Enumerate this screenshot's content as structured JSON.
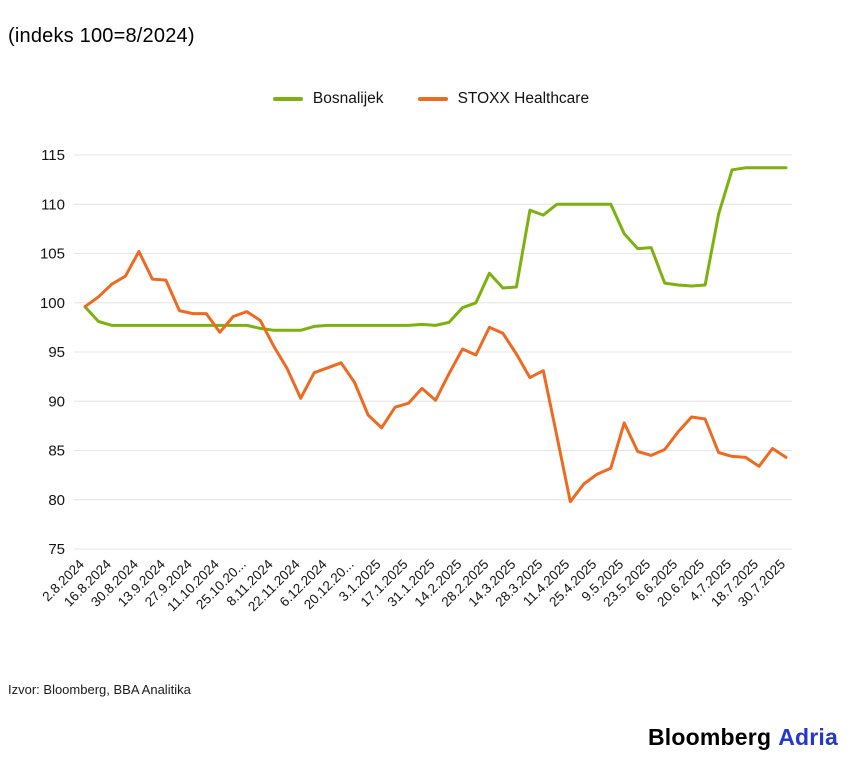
{
  "title": "(indeks 100=8/2024)",
  "legend": {
    "items": [
      {
        "label": "Bosnalijek",
        "color": "#7cb20f"
      },
      {
        "label": "STOXX Healthcare",
        "color": "#ef6a21"
      }
    ]
  },
  "chart_data": {
    "type": "line",
    "title": "(indeks 100=8/2024)",
    "xlabel": "",
    "ylabel": "",
    "ylim": [
      75,
      115
    ],
    "yticks": [
      75,
      80,
      85,
      90,
      95,
      100,
      105,
      110,
      115
    ],
    "grid": "horizontal",
    "legend_position": "top-center",
    "x_tick_labels": [
      "2.8.2024",
      "16.8.2024",
      "30.8.2024",
      "13.9.2024",
      "27.9.2024",
      "11.10.2024",
      "25.10.20...",
      "8.11.2024",
      "22.11.2024",
      "6.12.2024",
      "20.12.20...",
      "3.1.2025",
      "17.1.2025",
      "31.1.2025",
      "14.2.2025",
      "28.2.2025",
      "14.3.2025",
      "28.3.2025",
      "11.4.2025",
      "25.4.2025",
      "9.5.2025",
      "23.5.2025",
      "6.6.2025",
      "20.6.2025",
      "4.7.2025",
      "18.7.2025",
      "30.7.2025"
    ],
    "x_tick_every": 2,
    "n_points": 53,
    "series": [
      {
        "name": "Bosnalijek",
        "color": "#7cb20f",
        "values": [
          99.6,
          98.1,
          97.7,
          97.7,
          97.7,
          97.7,
          97.7,
          97.7,
          97.7,
          97.7,
          97.7,
          97.7,
          97.7,
          97.4,
          97.2,
          97.2,
          97.2,
          97.6,
          97.7,
          97.7,
          97.7,
          97.7,
          97.7,
          97.7,
          97.7,
          97.8,
          97.7,
          98.0,
          99.5,
          100.0,
          103.0,
          101.5,
          101.6,
          109.4,
          108.9,
          110.0,
          110.0,
          110.0,
          110.0,
          110.0,
          107.0,
          105.5,
          105.6,
          102.0,
          101.8,
          101.7,
          101.8,
          109.0,
          113.5,
          113.7,
          113.7,
          113.7,
          113.7
        ]
      },
      {
        "name": "STOXX Healthcare",
        "color": "#ef6a21",
        "values": [
          99.6,
          100.6,
          101.9,
          102.7,
          105.2,
          102.4,
          102.3,
          99.2,
          98.9,
          98.9,
          97.0,
          98.6,
          99.1,
          98.2,
          95.6,
          93.3,
          90.3,
          92.9,
          93.4,
          93.9,
          91.9,
          88.6,
          87.3,
          89.4,
          89.8,
          91.3,
          90.1,
          92.8,
          95.3,
          94.7,
          97.5,
          96.9,
          94.8,
          92.4,
          93.1,
          86.5,
          79.8,
          81.6,
          82.6,
          83.2,
          87.8,
          84.9,
          84.5,
          85.1,
          86.9,
          88.4,
          88.2,
          84.8,
          84.4,
          84.3,
          83.4,
          85.2,
          84.3
        ]
      }
    ]
  },
  "source": "Izvor: Bloomberg, BBA Analitika",
  "brand": {
    "bloomberg": "Bloomberg",
    "adria": "Adria",
    "adria_color": "#2438cd"
  }
}
